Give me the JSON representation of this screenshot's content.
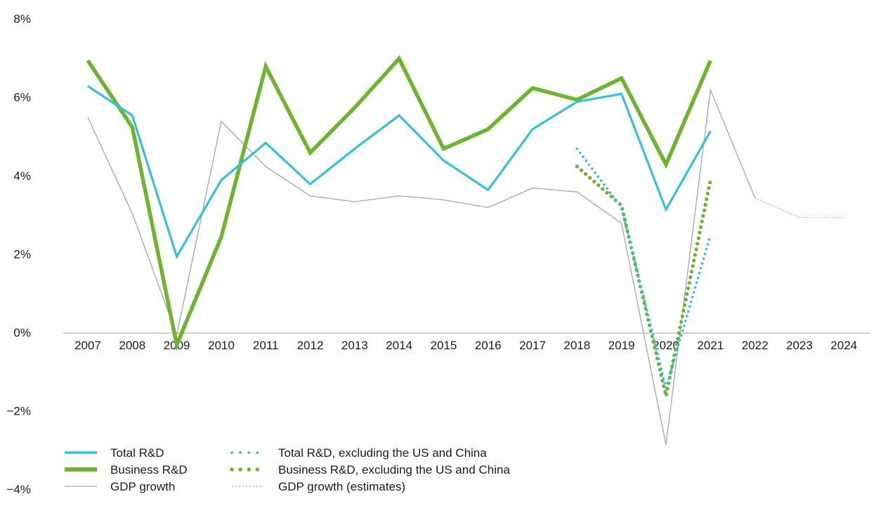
{
  "chart_data": {
    "type": "line",
    "x": [
      "2007",
      "2008",
      "2009",
      "2010",
      "2011",
      "2012",
      "2013",
      "2014",
      "2015",
      "2016",
      "2017",
      "2018",
      "2019",
      "2020",
      "2021",
      "2022",
      "2023",
      "2024"
    ],
    "y_ticks": [
      "8%",
      "6%",
      "4%",
      "2%",
      "0%",
      "−2%",
      "−4%"
    ],
    "ylim": [
      -4,
      8
    ],
    "grid": false,
    "legend_position": "bottom-left",
    "series": [
      {
        "name": "Total R&D",
        "style": "solid",
        "color": "#35bfe0",
        "values": [
          6.3,
          5.55,
          1.95,
          3.9,
          4.85,
          3.8,
          4.7,
          5.55,
          4.4,
          3.65,
          5.2,
          5.9,
          6.1,
          3.15,
          5.15,
          null,
          null,
          null
        ]
      },
      {
        "name": "Business R&D",
        "style": "thick",
        "color": "#6db52e",
        "values": [
          6.95,
          5.25,
          -0.3,
          2.45,
          6.8,
          4.6,
          5.75,
          7.0,
          4.7,
          5.2,
          6.25,
          5.95,
          6.5,
          4.3,
          6.95,
          null,
          null,
          null
        ]
      },
      {
        "name": "GDP growth",
        "style": "thin",
        "color": "#a9a9b2",
        "values": [
          5.5,
          3.05,
          -0.05,
          5.4,
          4.25,
          3.5,
          3.35,
          3.5,
          3.4,
          3.2,
          3.7,
          3.6,
          2.8,
          -2.85,
          6.2,
          3.45,
          null,
          null
        ]
      },
      {
        "name": "Total R&D, excluding the US and China",
        "style": "dotted",
        "color": "#35bfe0",
        "values": [
          null,
          null,
          null,
          null,
          null,
          null,
          null,
          null,
          null,
          null,
          null,
          4.7,
          3.2,
          -1.4,
          2.5,
          null,
          null,
          null
        ]
      },
      {
        "name": "Business R&D, excluding the US and China",
        "style": "dotted-thick",
        "color": "#6db52e",
        "values": [
          null,
          null,
          null,
          null,
          null,
          null,
          null,
          null,
          null,
          null,
          null,
          4.25,
          3.25,
          -1.6,
          3.9,
          null,
          null,
          null
        ]
      },
      {
        "name": "GDP growth (estimates)",
        "style": "dotted-thin",
        "color": "#a9a9b2",
        "values": [
          null,
          null,
          null,
          null,
          null,
          null,
          null,
          null,
          null,
          null,
          null,
          null,
          null,
          null,
          null,
          3.45,
          2.95,
          2.95
        ]
      }
    ]
  }
}
